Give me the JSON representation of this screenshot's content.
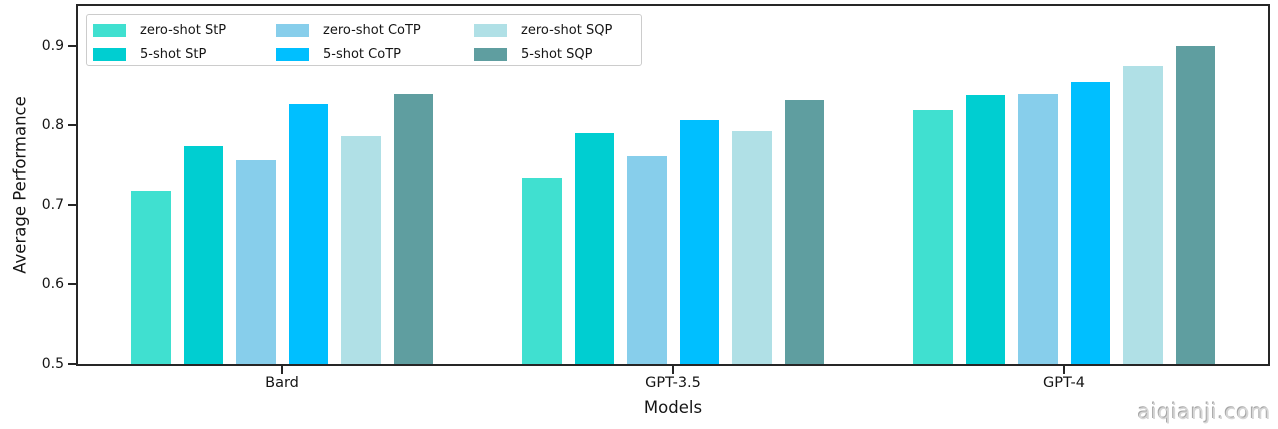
{
  "chart_data": {
    "type": "bar",
    "title": "",
    "xlabel": "Models",
    "ylabel": "Average Performance",
    "categories": [
      "Bard",
      "GPT-3.5",
      "GPT-4"
    ],
    "series": [
      {
        "name": "zero-shot StP",
        "color": "#40E0D0",
        "values": [
          0.717,
          0.734,
          0.819
        ]
      },
      {
        "name": "5-shot StP",
        "color": "#00CED1",
        "values": [
          0.774,
          0.79,
          0.838
        ]
      },
      {
        "name": "zero-shot CoTP",
        "color": "#87CEEB",
        "values": [
          0.757,
          0.762,
          0.84
        ]
      },
      {
        "name": "5-shot CoTP",
        "color": "#00BFFF",
        "values": [
          0.827,
          0.807,
          0.855
        ]
      },
      {
        "name": "zero-shot SQP",
        "color": "#B0E0E6",
        "values": [
          0.786,
          0.793,
          0.875
        ]
      },
      {
        "name": "5-shot SQP",
        "color": "#5F9EA0",
        "values": [
          0.84,
          0.832,
          0.9
        ]
      }
    ],
    "ylim": [
      0.5,
      0.95
    ],
    "yticks": [
      0.5,
      0.6,
      0.7,
      0.8,
      0.9
    ],
    "ytick_decimals": 1,
    "legend_position": "upper-left",
    "legend_columns": 3,
    "grid": false
  },
  "watermark": "aiqianji.com"
}
